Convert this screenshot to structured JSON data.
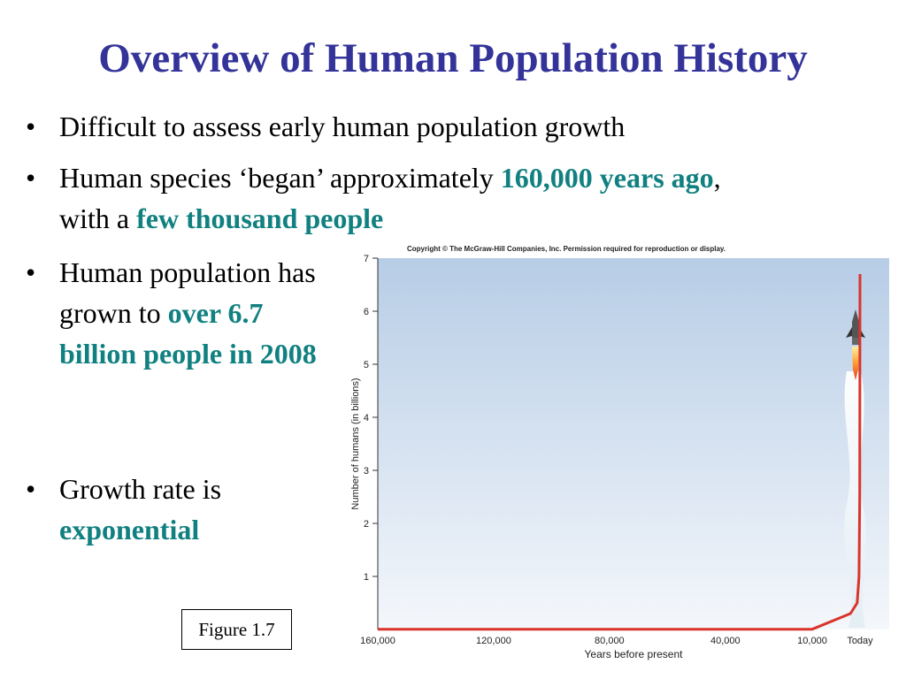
{
  "slide": {
    "title": "Overview of Human Population History",
    "bullets": [
      {
        "text": "Difficult to assess early human population growth"
      },
      {
        "pre": "Human species ‘began’ approximately ",
        "hl1": "160,000 years ago",
        "mid": ",",
        "line2": "with a ",
        "hl2": "few thousand people"
      },
      {
        "pre": "Human population has grown to ",
        "hl": "over 6.7 billion people in 2008"
      },
      {
        "pre": "Growth rate is ",
        "hl": "exponential"
      }
    ],
    "bullet_char": "•",
    "figure_label": "Figure 1.7",
    "colors": {
      "title": "#333399",
      "highlight": "#118080",
      "curve": "#d9342b"
    }
  },
  "chart_data": {
    "type": "line",
    "copyright": "Copyright © The McGraw-Hill Companies, Inc. Permission required for reproduction or display.",
    "xlabel": "Years before present",
    "ylabel": "Number of humans (in billions)",
    "x_ticks": [
      "160,000",
      "120,000",
      "80,000",
      "40,000",
      "10,000",
      "Today"
    ],
    "y_ticks": [
      "1",
      "2",
      "3",
      "4",
      "5",
      "6",
      "7"
    ],
    "ylim": [
      0,
      7
    ],
    "xlim": [
      160000,
      0
    ],
    "series": [
      {
        "x": [
          160000,
          120000,
          80000,
          40000,
          10000,
          2000,
          600,
          200,
          50,
          0
        ],
        "y": [
          0.003,
          0.003,
          0.004,
          0.005,
          0.005,
          0.3,
          0.5,
          1.0,
          2.5,
          6.7
        ]
      }
    ],
    "grid": false,
    "annotation_icon": "rocket-icon"
  }
}
